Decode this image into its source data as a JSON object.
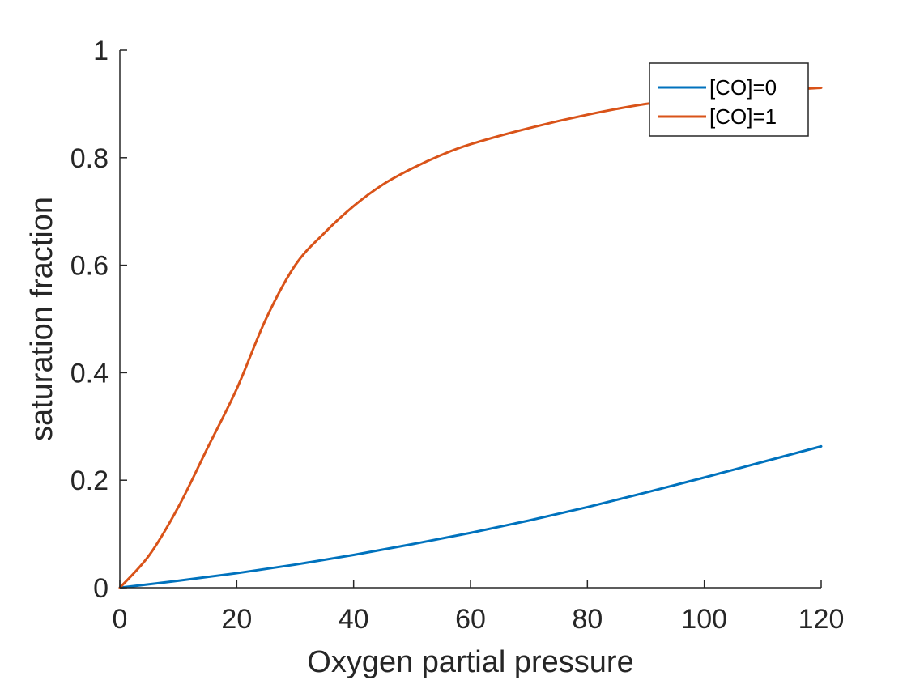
{
  "chart_data": {
    "type": "line",
    "title": "",
    "xlabel": "Oxygen partial pressure",
    "ylabel": "saturation fraction",
    "xlim": [
      0,
      120
    ],
    "ylim": [
      0,
      1
    ],
    "xticks": [
      0,
      20,
      40,
      60,
      80,
      100,
      120
    ],
    "yticks": [
      0,
      0.2,
      0.4,
      0.6,
      0.8,
      1
    ],
    "xtick_labels": [
      "0",
      "20",
      "40",
      "60",
      "80",
      "100",
      "120"
    ],
    "ytick_labels": [
      "0",
      "0.2",
      "0.4",
      "0.6",
      "0.8",
      "1"
    ],
    "grid": false,
    "legend_position": "top-right",
    "series": [
      {
        "name": "[CO]=0",
        "color": "#0072BD",
        "x": [
          0,
          10,
          20,
          30,
          40,
          50,
          60,
          70,
          80,
          90,
          100,
          110,
          120
        ],
        "y": [
          0,
          0.013,
          0.027,
          0.043,
          0.061,
          0.081,
          0.102,
          0.125,
          0.15,
          0.177,
          0.205,
          0.234,
          0.263
        ]
      },
      {
        "name": "[CO]=1",
        "color": "#D95319",
        "x": [
          0,
          5,
          10,
          15,
          20,
          25,
          30,
          35,
          40,
          45,
          50,
          55,
          60,
          70,
          80,
          90,
          100,
          110,
          120
        ],
        "y": [
          0,
          0.06,
          0.15,
          0.26,
          0.37,
          0.5,
          0.6,
          0.66,
          0.71,
          0.75,
          0.78,
          0.805,
          0.825,
          0.855,
          0.88,
          0.9,
          0.913,
          0.923,
          0.93
        ]
      }
    ]
  }
}
